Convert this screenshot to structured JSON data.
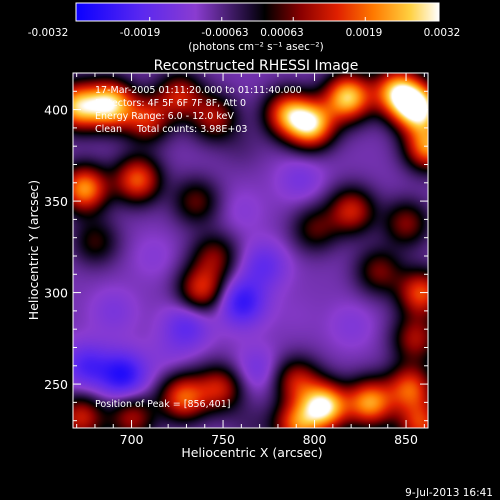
{
  "colorbar": {
    "tick_labels": [
      "-0.0032",
      "-0.0019",
      "-0.00063",
      "0.00063",
      "0.0019",
      "0.0032"
    ],
    "units_label": "(photons cm⁻² s⁻¹ asec⁻²)"
  },
  "chart_data": {
    "type": "heatmap",
    "title": "Reconstructed RHESSI Image",
    "xlabel": "Heliocentric X (arcsec)",
    "ylabel": "Heliocentric Y (arcsec)",
    "xlim": [
      668,
      862
    ],
    "ylim": [
      226,
      420
    ],
    "x_ticks": [
      700,
      750,
      800,
      850
    ],
    "y_ticks": [
      250,
      300,
      350,
      400
    ],
    "value_range": [
      -0.0032,
      0.0032
    ],
    "colormap": "blue-purple-black-red-orange-yellow-white",
    "annotations": [
      "17-Mar-2005 01:11:20.000 to 01:11:40.000",
      "Detectors: 4F 5F 6F 7F 8F, Att 0",
      "Energy Range: 6.0 - 12.0 keV",
      "Clean     Total counts: 3.98E+03"
    ],
    "peak_label": "Position of Peak = [856,401]",
    "sources": [
      {
        "x": 688,
        "y": 403,
        "v": 0.0028
      },
      {
        "x": 670,
        "y": 402,
        "v": 0.0024
      },
      {
        "x": 708,
        "y": 395,
        "v": 0.0012
      },
      {
        "x": 726,
        "y": 408,
        "v": 0.0011
      },
      {
        "x": 745,
        "y": 396,
        "v": 0.0009
      },
      {
        "x": 760,
        "y": 380,
        "v": -0.0006
      },
      {
        "x": 785,
        "y": 398,
        "v": 0.0018
      },
      {
        "x": 798,
        "y": 392,
        "v": 0.0026
      },
      {
        "x": 818,
        "y": 407,
        "v": 0.0027
      },
      {
        "x": 845,
        "y": 410,
        "v": 0.0024
      },
      {
        "x": 856,
        "y": 401,
        "v": 0.0032
      },
      {
        "x": 862,
        "y": 380,
        "v": 0.0021
      },
      {
        "x": 674,
        "y": 357,
        "v": 0.0022
      },
      {
        "x": 703,
        "y": 362,
        "v": 0.0017
      },
      {
        "x": 735,
        "y": 350,
        "v": 0.0005
      },
      {
        "x": 760,
        "y": 345,
        "v": -0.0012
      },
      {
        "x": 792,
        "y": 362,
        "v": -0.0015
      },
      {
        "x": 820,
        "y": 345,
        "v": 0.0012
      },
      {
        "x": 850,
        "y": 338,
        "v": 0.0007
      },
      {
        "x": 680,
        "y": 328,
        "v": 0.0003
      },
      {
        "x": 712,
        "y": 320,
        "v": -0.0012
      },
      {
        "x": 745,
        "y": 320,
        "v": 0.0006
      },
      {
        "x": 738,
        "y": 302,
        "v": 0.0013
      },
      {
        "x": 772,
        "y": 315,
        "v": -0.0019
      },
      {
        "x": 800,
        "y": 335,
        "v": 0.0004
      },
      {
        "x": 835,
        "y": 312,
        "v": 0.0006
      },
      {
        "x": 858,
        "y": 300,
        "v": 0.0016
      },
      {
        "x": 690,
        "y": 290,
        "v": -0.0014
      },
      {
        "x": 730,
        "y": 282,
        "v": -0.002
      },
      {
        "x": 760,
        "y": 295,
        "v": -0.0026
      },
      {
        "x": 790,
        "y": 288,
        "v": -0.001
      },
      {
        "x": 820,
        "y": 282,
        "v": -0.0013
      },
      {
        "x": 855,
        "y": 275,
        "v": 0.0009
      },
      {
        "x": 675,
        "y": 260,
        "v": -0.0022
      },
      {
        "x": 695,
        "y": 255,
        "v": -0.0028
      },
      {
        "x": 720,
        "y": 265,
        "v": -0.0012
      },
      {
        "x": 748,
        "y": 248,
        "v": 0.0011
      },
      {
        "x": 728,
        "y": 243,
        "v": 0.0017
      },
      {
        "x": 768,
        "y": 258,
        "v": -0.0016
      },
      {
        "x": 790,
        "y": 252,
        "v": 0.001
      },
      {
        "x": 805,
        "y": 238,
        "v": 0.003
      },
      {
        "x": 830,
        "y": 240,
        "v": 0.0022
      },
      {
        "x": 852,
        "y": 248,
        "v": 0.0016
      },
      {
        "x": 672,
        "y": 232,
        "v": 0.0012
      },
      {
        "x": 700,
        "y": 232,
        "v": 0.0009
      },
      {
        "x": 765,
        "y": 228,
        "v": -0.0005
      },
      {
        "x": 790,
        "y": 228,
        "v": 0.0016
      },
      {
        "x": 858,
        "y": 228,
        "v": 0.0014
      }
    ]
  },
  "footer": {
    "date": "9-Jul-2013 16:41"
  }
}
